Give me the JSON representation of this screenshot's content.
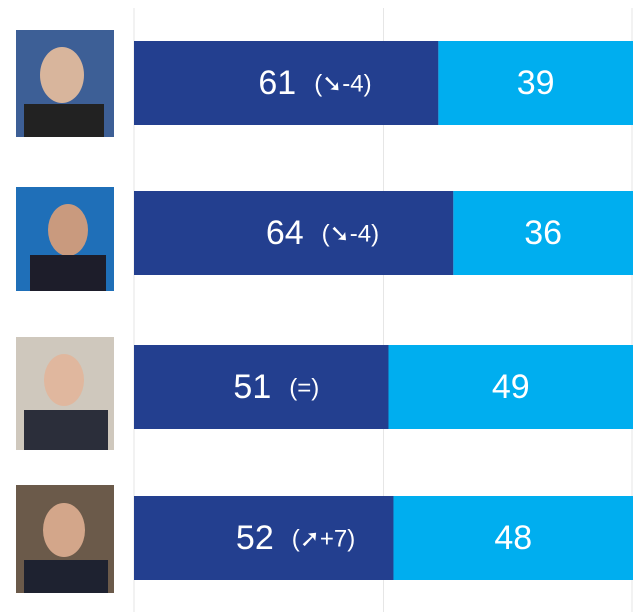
{
  "chart_data": {
    "type": "stacked-bar-horizontal",
    "categories": [
      null,
      null,
      null,
      null
    ],
    "series": [
      {
        "color": "#233f8f",
        "values": [
          61,
          64,
          51,
          52
        ]
      },
      {
        "color": "#00aeef",
        "values": [
          39,
          36,
          49,
          48
        ]
      }
    ],
    "annotations": [
      "(➘-4)",
      "(➘-4)",
      "(=)",
      "(➚+7)"
    ],
    "xlim": [
      0,
      100
    ],
    "xticks": [
      0,
      50,
      100
    ],
    "grid": true
  }
}
